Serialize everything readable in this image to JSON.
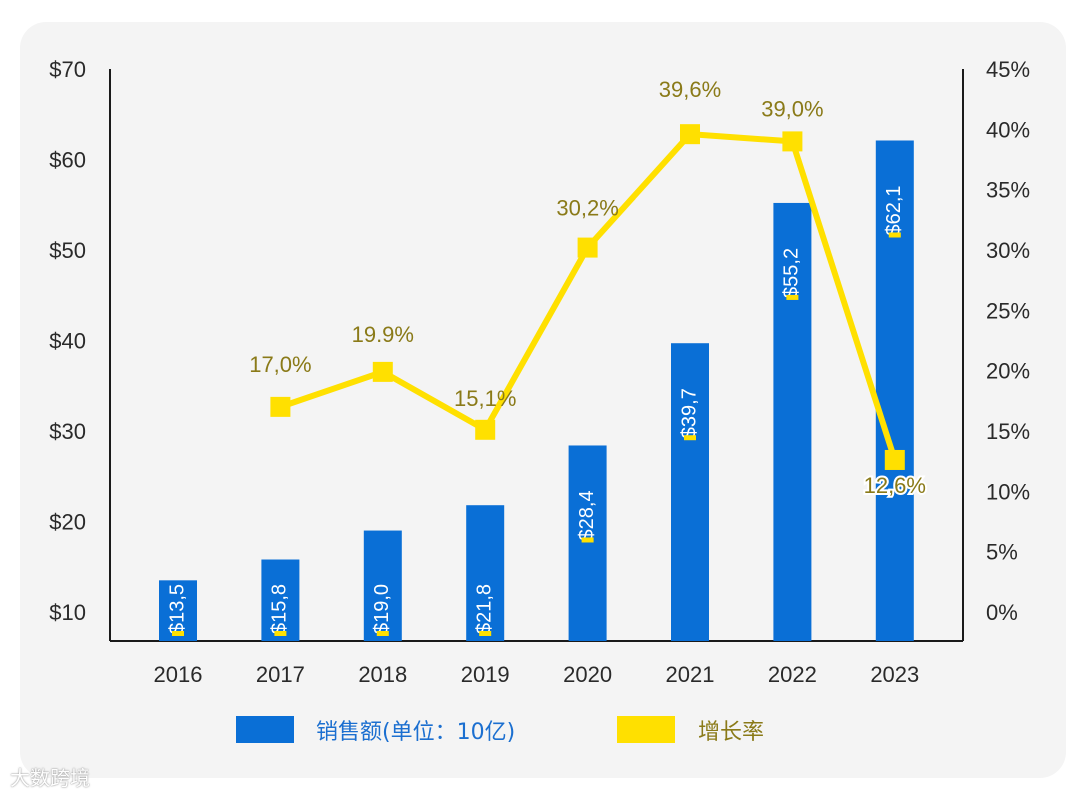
{
  "chart_data": {
    "type": "bar",
    "categories": [
      "2016",
      "2017",
      "2018",
      "2019",
      "2020",
      "2021",
      "2022",
      "2023"
    ],
    "series": [
      {
        "name": "销售额(单位：10亿)",
        "type": "bar",
        "values": [
          13.5,
          15.8,
          19.0,
          21.8,
          28.4,
          39.7,
          55.2,
          62.1
        ],
        "labels": [
          "$13,5",
          "$15,8",
          "$19,0",
          "$21,8",
          "$28,4",
          "$39,7",
          "$55,2",
          "$62,1"
        ],
        "color": "#0a6fd6",
        "axis": "left"
      },
      {
        "name": "增长率",
        "type": "line",
        "values": [
          null,
          17.0,
          19.9,
          15.1,
          30.2,
          39.6,
          39.0,
          12.6
        ],
        "labels": [
          "",
          "17,0%",
          "19.9%",
          "15,1%",
          "30,2%",
          "39,6%",
          "39,0%",
          "12,6%"
        ],
        "color": "#ffe000",
        "axis": "right"
      }
    ],
    "y_left": {
      "min": 10,
      "max": 70,
      "ticks": [
        "$10",
        "$20",
        "$30",
        "$40",
        "$50",
        "$60",
        "$70"
      ]
    },
    "y_right": {
      "min": 0,
      "max": 45,
      "ticks": [
        "0%",
        "5%",
        "10%",
        "15%",
        "20%",
        "25%",
        "30%",
        "35%",
        "40%",
        "45%"
      ]
    },
    "title": "",
    "xlabel": "",
    "ylabel": "",
    "legend": "bottom",
    "grid": false
  },
  "watermark": "大数跨境"
}
